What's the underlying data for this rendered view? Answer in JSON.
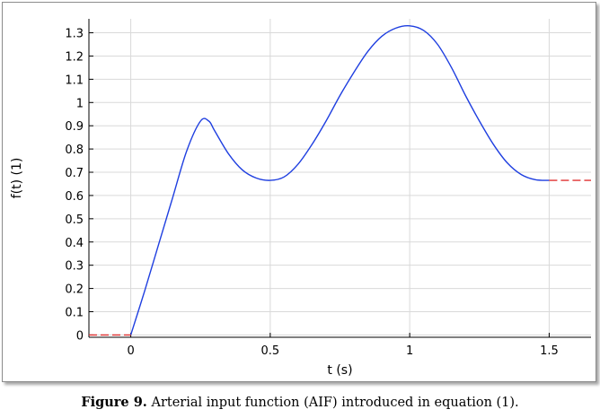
{
  "figure": {
    "caption_label": "Figure 9.",
    "caption_text": " Arterial input function (AIF) introduced in equation (1)."
  },
  "chart_data": {
    "type": "line",
    "title": "",
    "xlabel": "t (s)",
    "ylabel": "f(t) (1)",
    "xlim": [
      -0.15,
      1.65
    ],
    "ylim": [
      -0.01,
      1.36
    ],
    "grid": true,
    "x_ticks": [
      0,
      0.5,
      1,
      1.5
    ],
    "x_tick_labels": [
      "0",
      "0.5",
      "1",
      "1.5"
    ],
    "y_ticks": [
      0,
      0.1,
      0.2,
      0.3,
      0.4,
      0.5,
      0.6,
      0.7,
      0.8,
      0.9,
      1,
      1.1,
      1.2,
      1.3
    ],
    "y_tick_labels": [
      "0",
      "0.1",
      "0.2",
      "0.3",
      "0.4",
      "0.5",
      "0.6",
      "0.7",
      "0.8",
      "0.9",
      "1",
      "1.1",
      "1.2",
      "1.3"
    ],
    "series": [
      {
        "color": "#1f3fe0",
        "style": "solid",
        "x": [
          0,
          0.05,
          0.1,
          0.15,
          0.2,
          0.25,
          0.28,
          0.3,
          0.35,
          0.4,
          0.45,
          0.5,
          0.55,
          0.6,
          0.65,
          0.7,
          0.75,
          0.8,
          0.85,
          0.9,
          0.95,
          1.0,
          1.05,
          1.1,
          1.15,
          1.2,
          1.25,
          1.3,
          1.35,
          1.4,
          1.45,
          1.5
        ],
        "y": [
          0,
          0.19,
          0.39,
          0.59,
          0.79,
          0.92,
          0.92,
          0.88,
          0.78,
          0.71,
          0.675,
          0.665,
          0.68,
          0.735,
          0.82,
          0.92,
          1.03,
          1.13,
          1.22,
          1.285,
          1.32,
          1.33,
          1.31,
          1.25,
          1.15,
          1.03,
          0.92,
          0.82,
          0.74,
          0.69,
          0.668,
          0.665
        ]
      },
      {
        "color": "#e03030",
        "style": "dashed",
        "x": [
          -0.15,
          0
        ],
        "y": [
          0,
          0
        ]
      },
      {
        "color": "#e03030",
        "style": "dashed",
        "x": [
          1.5,
          1.65
        ],
        "y": [
          0.665,
          0.665
        ]
      }
    ]
  }
}
